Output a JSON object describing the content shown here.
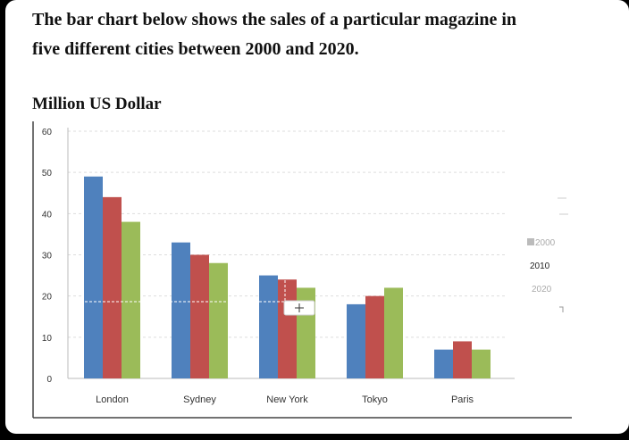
{
  "heading": {
    "line1": "The bar chart below shows the sales of a particular magazine in",
    "line2": "five different cities between 2000 and 2020."
  },
  "chart_data": {
    "type": "bar",
    "title": "The bar chart below shows the sales of a particular magazine in five different cities between 2000 and 2020.",
    "ylabel": "Million US Dollar",
    "xlabel": "",
    "ylim": [
      0,
      60
    ],
    "y_ticks": [
      "0",
      "10",
      "20",
      "30",
      "40",
      "50",
      "60"
    ],
    "y_tick_values": [
      0,
      10,
      20,
      30,
      40,
      50,
      60
    ],
    "categories": [
      "London",
      "Sydney",
      "New York",
      "Tokyo",
      "Paris"
    ],
    "series": [
      {
        "name": "2000",
        "color": "#4f81bd",
        "values": [
          49,
          33,
          25,
          18,
          7
        ]
      },
      {
        "name": "2010",
        "color": "#c0504d",
        "values": [
          44,
          30,
          24,
          20,
          9
        ]
      },
      {
        "name": "2020",
        "color": "#9bbb59",
        "values": [
          38,
          28,
          22,
          22,
          7
        ]
      }
    ],
    "legend_position": "right",
    "grid": true
  }
}
